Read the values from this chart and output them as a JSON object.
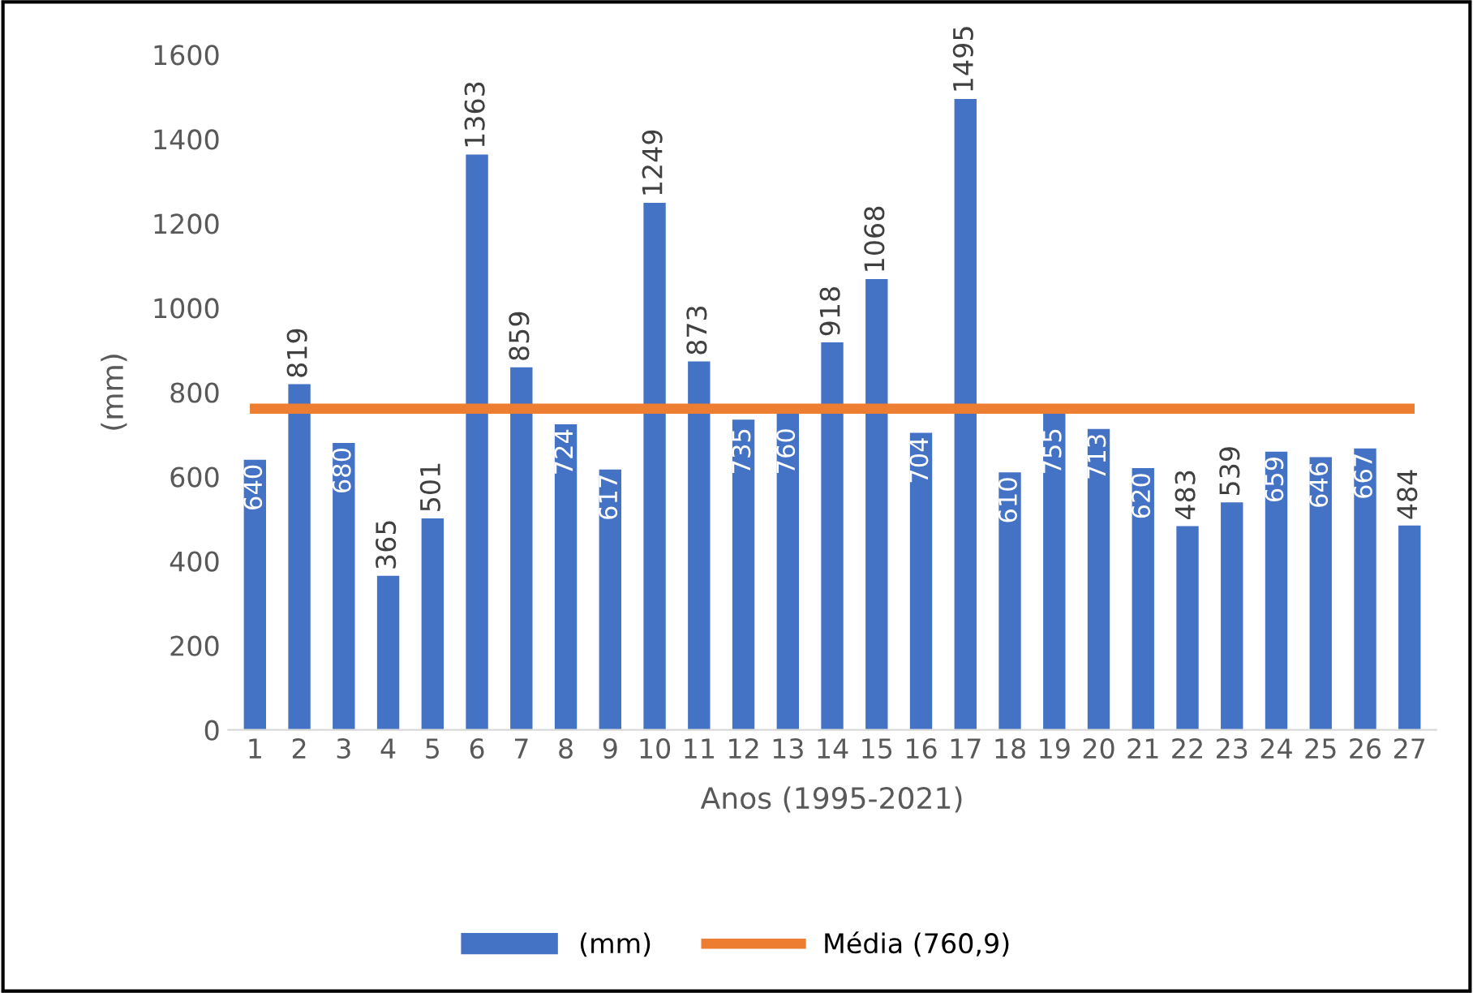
{
  "chart_data": {
    "type": "bar",
    "xlabel": "Anos (1995-2021)",
    "ylabel": "(mm)",
    "categories": [
      "1",
      "2",
      "3",
      "4",
      "5",
      "6",
      "7",
      "8",
      "9",
      "10",
      "11",
      "12",
      "13",
      "14",
      "15",
      "16",
      "17",
      "18",
      "19",
      "20",
      "21",
      "22",
      "23",
      "24",
      "25",
      "26",
      "27"
    ],
    "series": [
      {
        "name": "(mm)",
        "color": "#4472c4",
        "values": [
          640,
          819,
          680,
          365,
          501,
          1363,
          859,
          724,
          617,
          1249,
          873,
          735,
          760,
          918,
          1068,
          704,
          1495,
          610,
          755,
          713,
          620,
          483,
          539,
          659,
          646,
          667,
          484
        ],
        "value_labels": [
          "640",
          "819",
          "680",
          "365",
          "501",
          "1363",
          "859",
          "724",
          "617",
          "1249",
          "873",
          "735",
          "760",
          "918",
          "1068",
          "704",
          "1495",
          "610",
          "755",
          "713",
          "620",
          "483",
          "539",
          "659",
          "646",
          "667",
          "484"
        ]
      },
      {
        "name": "Média (760,9)",
        "type": "line",
        "color": "#ed7d31",
        "values": [
          760.9,
          760.9,
          760.9,
          760.9,
          760.9,
          760.9,
          760.9,
          760.9,
          760.9,
          760.9,
          760.9,
          760.9,
          760.9,
          760.9,
          760.9,
          760.9,
          760.9,
          760.9,
          760.9,
          760.9,
          760.9,
          760.9,
          760.9,
          760.9,
          760.9,
          760.9,
          760.9
        ]
      }
    ],
    "ylim": [
      0,
      1600
    ],
    "yticks": [
      0,
      200,
      400,
      600,
      800,
      1000,
      1200,
      1400,
      1600
    ],
    "grid": false,
    "legend": "bottom"
  }
}
